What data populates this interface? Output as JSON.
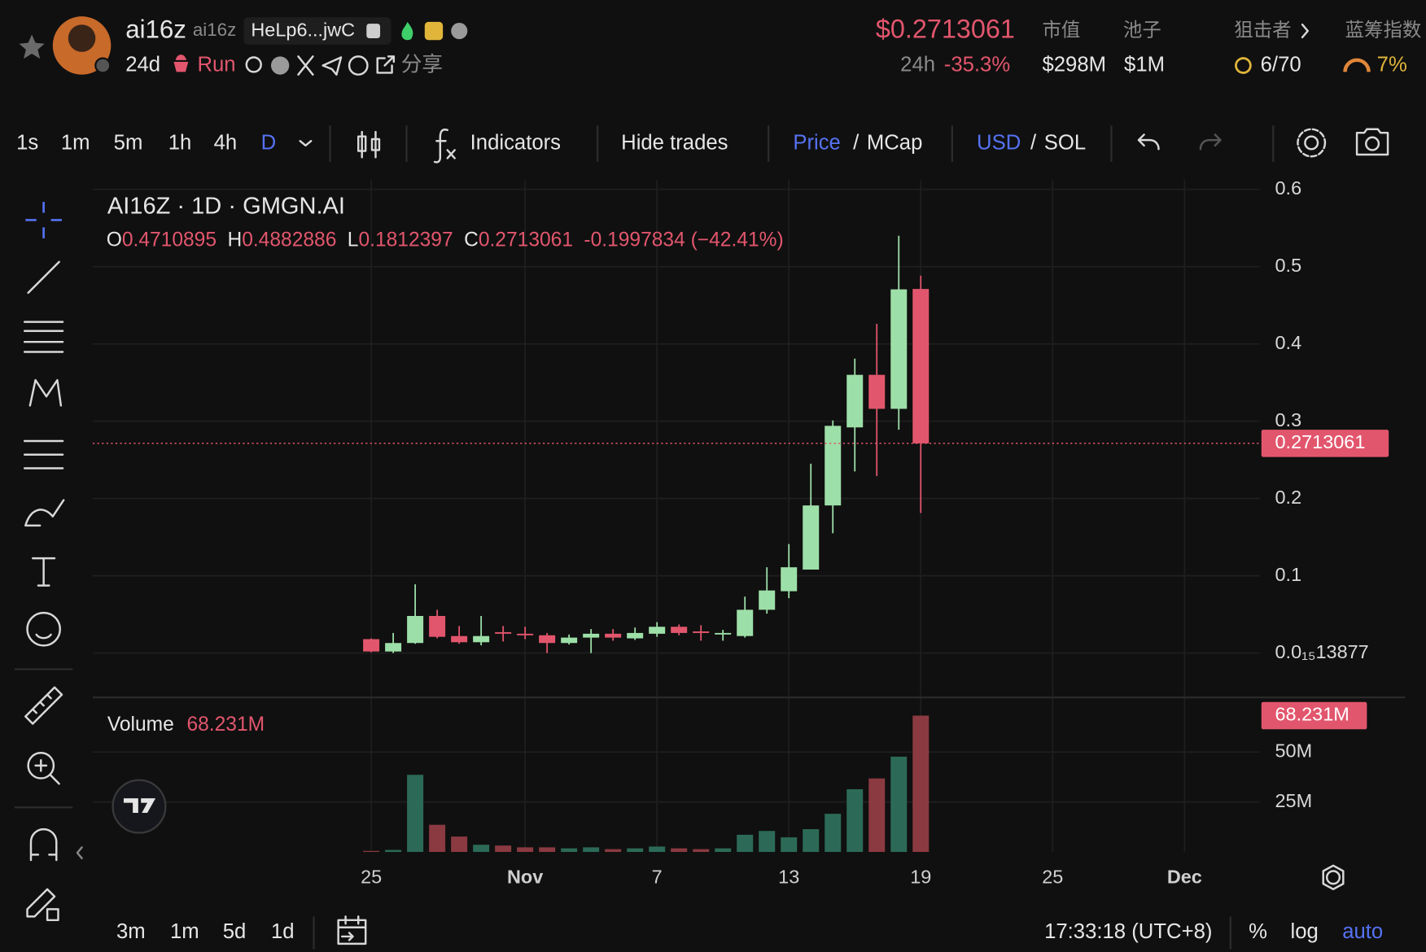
{
  "header": {
    "name": "ai16z",
    "symbol": "ai16z",
    "address": "HeLp6...jwC",
    "age": "24d",
    "run": "Run",
    "share": "分享",
    "price": "$0.2713061",
    "change_label": "24h",
    "change": "-35.3%",
    "mcap_label": "市值",
    "mcap": "$298M",
    "pool_label": "池子",
    "pool": "$1M",
    "snipers_label": "狙击者",
    "snipers": "6/70",
    "bluechip_label": "蓝筹指数",
    "bluechip": "7%"
  },
  "toolbar": {
    "intervals": [
      "1s",
      "1m",
      "5m",
      "1h",
      "4h",
      "D"
    ],
    "indicators": "Indicators",
    "hide_trades": "Hide trades",
    "price": "Price",
    "separator": "/",
    "mcap": "MCap",
    "usd": "USD",
    "sol": "SOL"
  },
  "footer": {
    "ranges": [
      "3m",
      "1m",
      "5d",
      "1d"
    ],
    "time": "17:33:18 (UTC+8)",
    "percent": "%",
    "log": "log",
    "auto": "auto"
  },
  "chart_data": {
    "type": "candlestick",
    "title": "AI16Z · 1D · GMGN.AI",
    "ohlc_letters": [
      "O",
      "H",
      "L",
      "C"
    ],
    "change_text": "-0.1997834 (−42.41%)",
    "x": [
      "Oct 25",
      "Oct 26",
      "Oct 27",
      "Oct 28",
      "Oct 29",
      "Oct 30",
      "Oct 31",
      "Nov 1",
      "Nov 2",
      "Nov 3",
      "Nov 4",
      "Nov 5",
      "Nov 6",
      "Nov 7",
      "Nov 8",
      "Nov 9",
      "Nov 10",
      "Nov 11",
      "Nov 12",
      "Nov 13",
      "Nov 14",
      "Nov 15",
      "Nov 16",
      "Nov 17",
      "Nov 18",
      "Nov 19"
    ],
    "open": [
      0.018,
      0.002,
      0.013,
      0.048,
      0.022,
      0.014,
      0.027,
      0.025,
      0.023,
      0.013,
      0.02,
      0.025,
      0.019,
      0.025,
      0.034,
      0.028,
      0.024,
      0.022,
      0.056,
      0.08,
      0.108,
      0.191,
      0.292,
      0.36,
      0.316,
      0.4710895
    ],
    "high": [
      0.019,
      0.026,
      0.089,
      0.056,
      0.035,
      0.048,
      0.035,
      0.034,
      0.026,
      0.024,
      0.031,
      0.031,
      0.033,
      0.04,
      0.037,
      0.036,
      0.03,
      0.073,
      0.111,
      0.141,
      0.245,
      0.301,
      0.381,
      0.426,
      0.54,
      0.4882886
    ],
    "low": [
      0.001,
      0.0,
      0.012,
      0.019,
      0.012,
      0.01,
      0.015,
      0.018,
      0.0,
      0.011,
      0.0,
      0.016,
      0.017,
      0.021,
      0.023,
      0.016,
      0.016,
      0.02,
      0.051,
      0.071,
      0.108,
      0.155,
      0.235,
      0.229,
      0.289,
      0.1812397
    ],
    "close": [
      0.002,
      0.013,
      0.048,
      0.021,
      0.014,
      0.022,
      0.025,
      0.023,
      0.013,
      0.02,
      0.025,
      0.02,
      0.026,
      0.034,
      0.026,
      0.026,
      0.026,
      0.056,
      0.081,
      0.111,
      0.191,
      0.294,
      0.36,
      0.316,
      0.4706,
      0.2713061
    ],
    "volume": [
      500000,
      1000000,
      38600000,
      13600000,
      7700000,
      3600000,
      3200000,
      2300000,
      2300000,
      1800000,
      2300000,
      1400000,
      1800000,
      2700000,
      1800000,
      1400000,
      1800000,
      8600000,
      10500000,
      7300000,
      11400000,
      19100000,
      31400000,
      36800000,
      47700000,
      68231000
    ],
    "volume_title": "Volume",
    "volume_last_label": "68.231M",
    "up_color": "#9ddfa8",
    "down_color": "#e2566d",
    "volume_up_color": "#2c6a57",
    "volume_down_color": "#8b3a41",
    "xlim": [
      "Oct 12",
      "Dec 4"
    ],
    "xticks": [
      {
        "value": "Oct 25",
        "label": "25"
      },
      {
        "value": "Nov 1",
        "label": "Nov"
      },
      {
        "value": "Nov 7",
        "label": "7"
      },
      {
        "value": "Nov 13",
        "label": "13"
      },
      {
        "value": "Nov 19",
        "label": "19"
      },
      {
        "value": "Nov 25",
        "label": "25"
      },
      {
        "value": "Dec 1",
        "label": "Dec"
      }
    ],
    "ylim": [
      -0.055,
      0.612
    ],
    "yticks": [
      {
        "value": 1.3877e-15,
        "label": "0.0₁₅13877"
      },
      0.1,
      0.2,
      0.3,
      0.4,
      0.5,
      0.6
    ],
    "volume_ylim": [
      0,
      76000000
    ],
    "volume_yticks": [
      {
        "value": 25000000,
        "label": "25M"
      },
      {
        "value": 50000000,
        "label": "50M"
      }
    ],
    "log_scale": false,
    "grid": true
  }
}
